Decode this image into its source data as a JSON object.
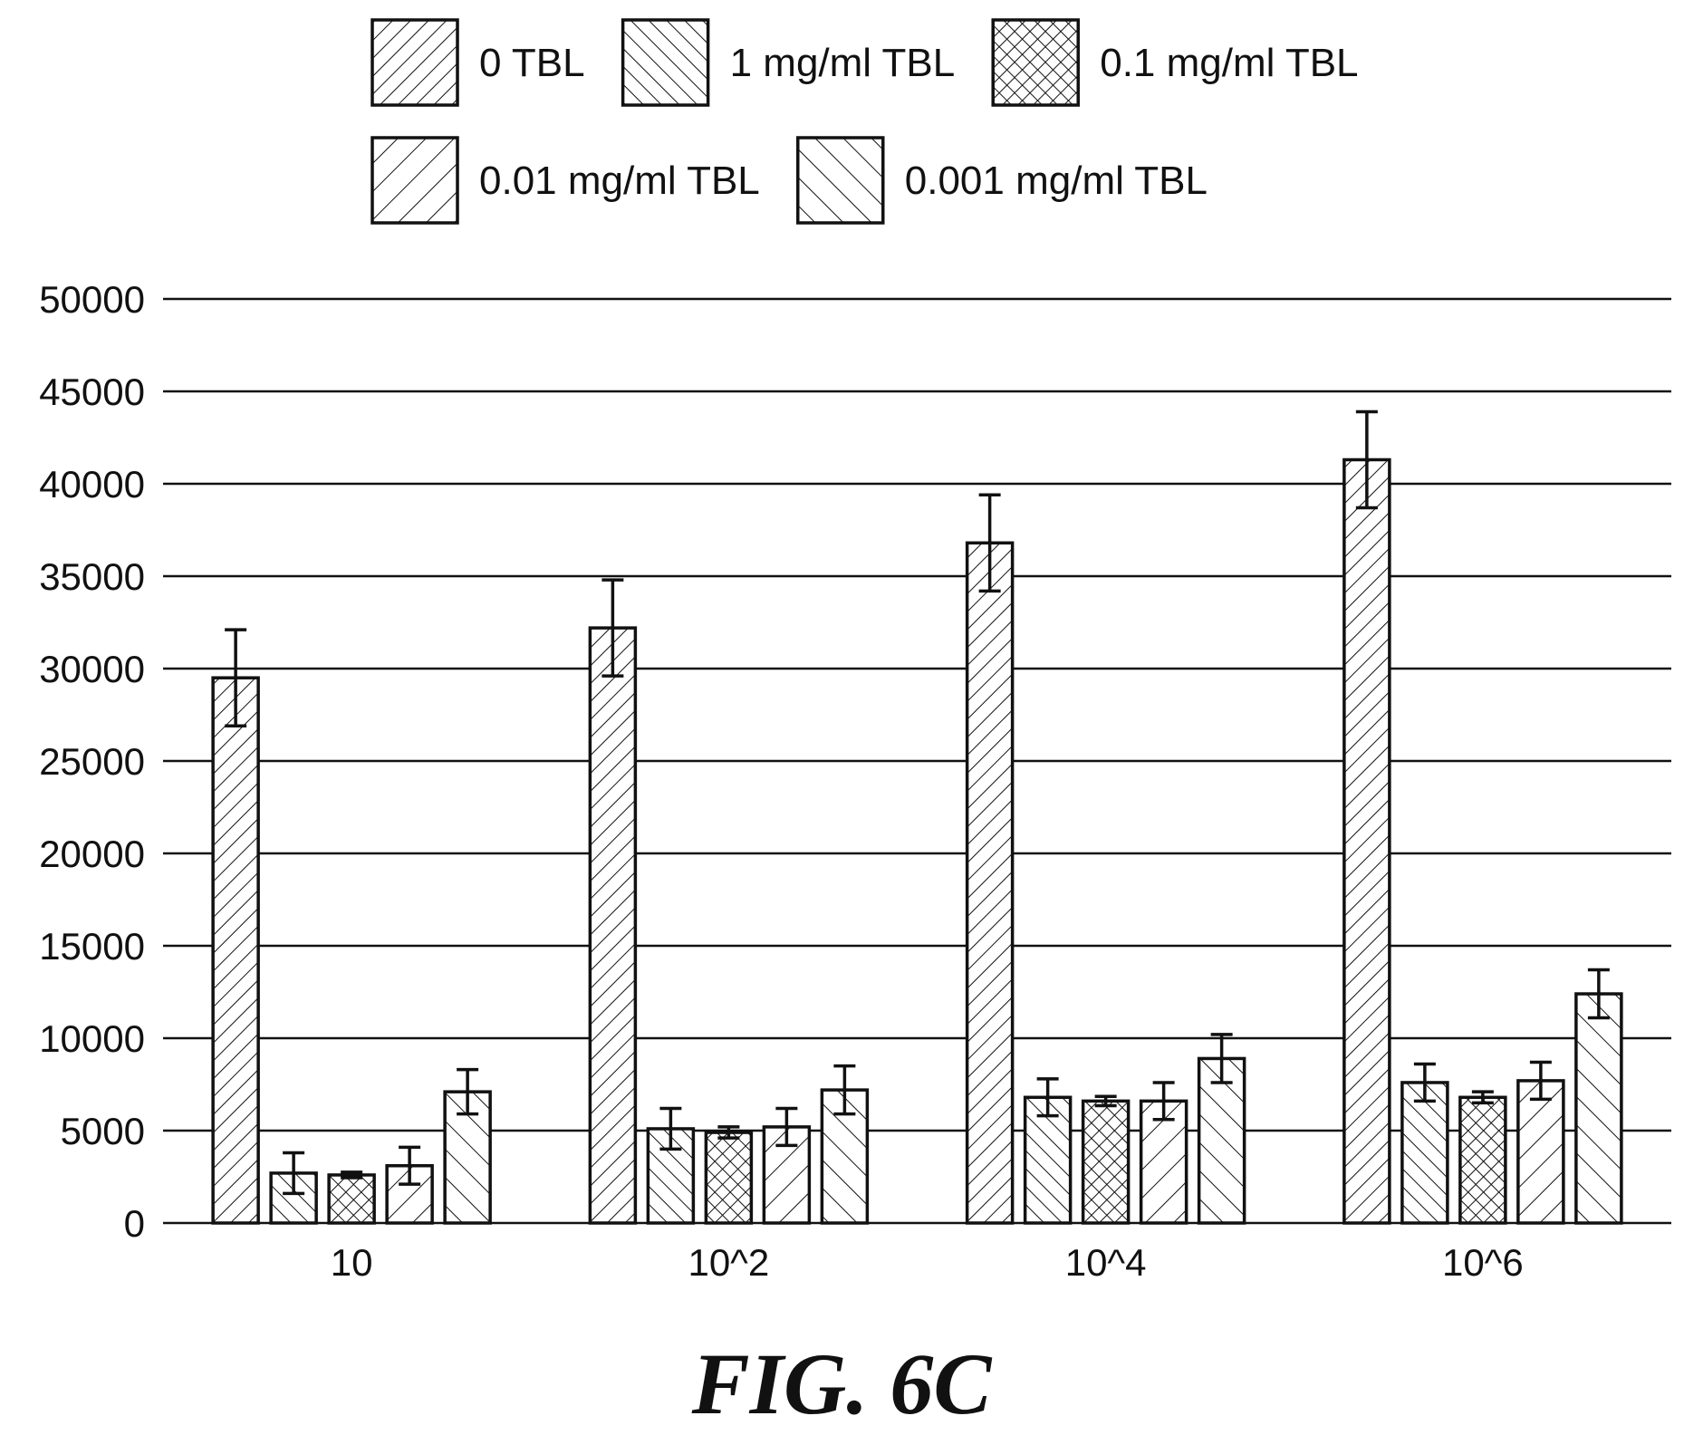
{
  "caption": "FIG. 6C",
  "chart_data": {
    "type": "bar",
    "title": "",
    "xlabel": "",
    "ylabel": "",
    "ylim": [
      0,
      50000
    ],
    "yticks": [
      0,
      5000,
      10000,
      15000,
      20000,
      25000,
      30000,
      35000,
      40000,
      45000,
      50000
    ],
    "grid": true,
    "legend_position": "top",
    "categories": [
      "10",
      "10^2",
      "10^4",
      "10^6"
    ],
    "series": [
      {
        "name": "0 TBL",
        "pattern": "diag-forward",
        "values": [
          29500,
          32200,
          36800,
          41300
        ],
        "errors": [
          2600,
          2600,
          2600,
          2600
        ]
      },
      {
        "name": "1 mg/ml TBL",
        "pattern": "diag-back",
        "values": [
          2700,
          5100,
          6800,
          7600
        ],
        "errors": [
          1100,
          1100,
          1000,
          1000
        ]
      },
      {
        "name": "0.1 mg/ml TBL",
        "pattern": "crosshatch",
        "values": [
          2600,
          4900,
          6600,
          6800
        ],
        "errors": [
          150,
          300,
          250,
          300
        ]
      },
      {
        "name": "0.01 mg/ml TBL",
        "pattern": "diag-forward-wide",
        "values": [
          3100,
          5200,
          6600,
          7700
        ],
        "errors": [
          1000,
          1000,
          1000,
          1000
        ]
      },
      {
        "name": "0.001 mg/ml TBL",
        "pattern": "diag-back-wide",
        "values": [
          7100,
          7200,
          8900,
          12400
        ],
        "errors": [
          1200,
          1300,
          1300,
          1300
        ]
      }
    ]
  }
}
